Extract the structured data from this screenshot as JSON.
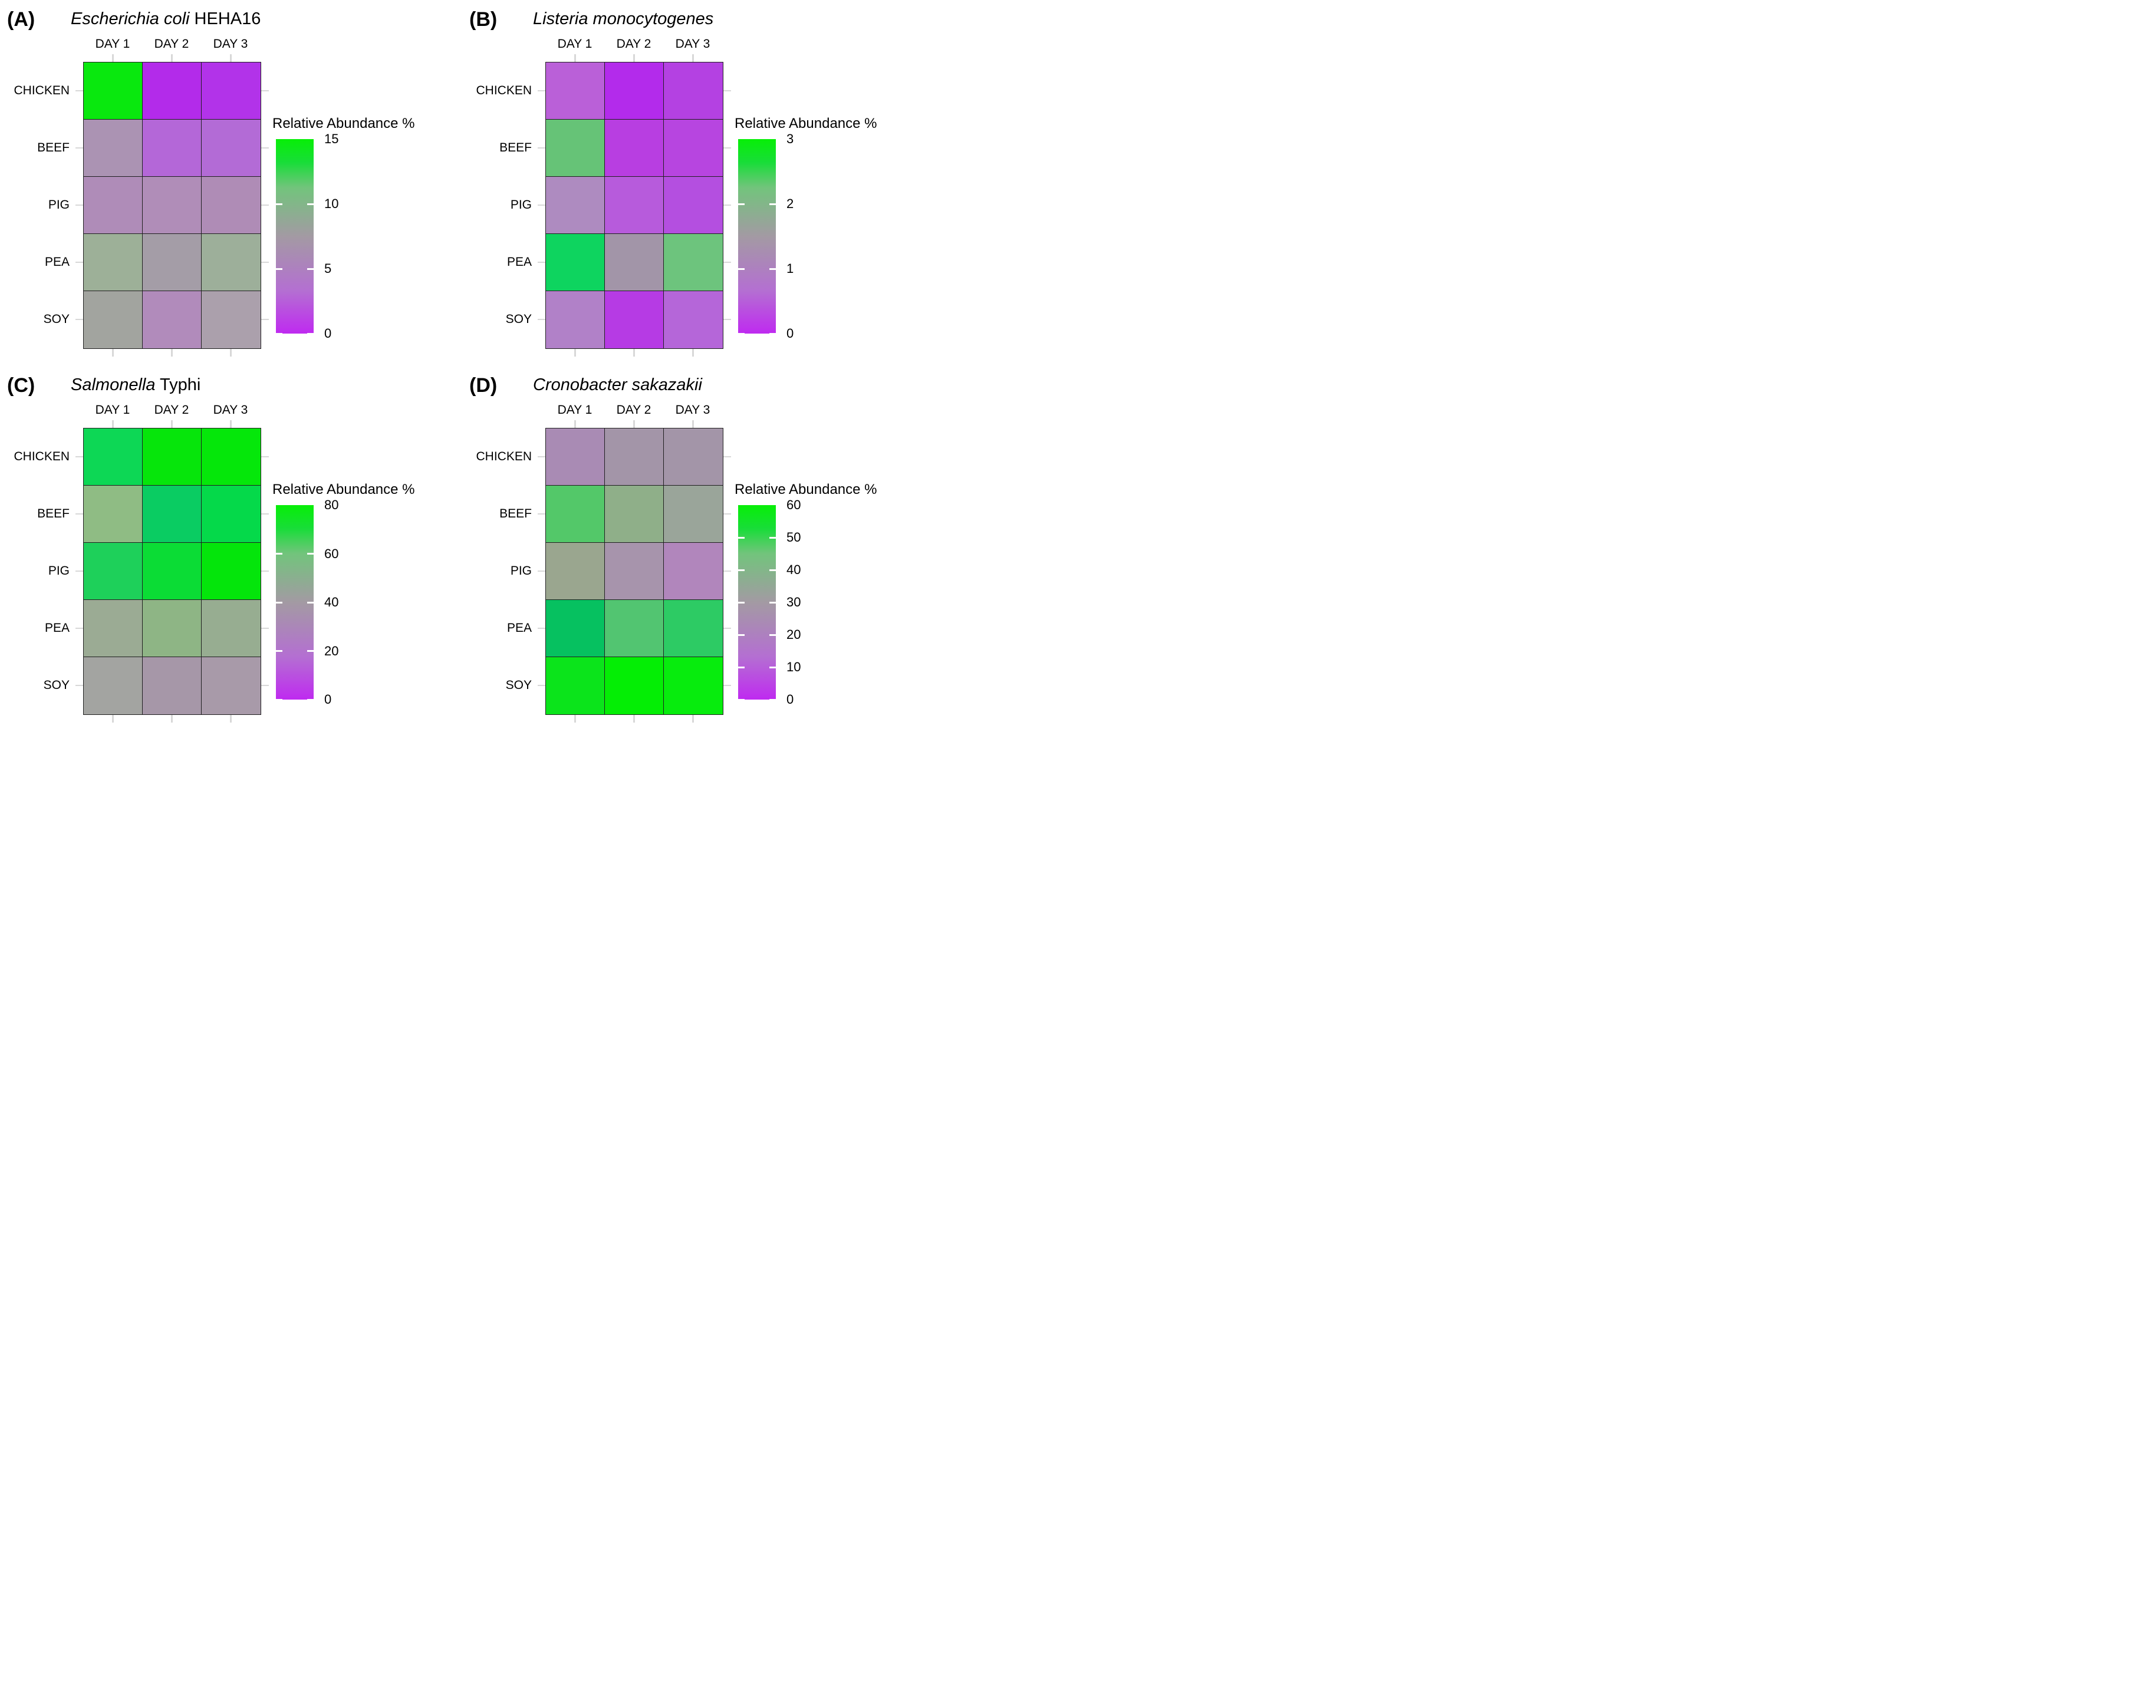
{
  "figure": {
    "legend_title": "Relative Abundance %",
    "columns": [
      "DAY 1",
      "DAY 2",
      "DAY 3"
    ],
    "rows": [
      "CHICKEN",
      "BEEF",
      "PIG",
      "PEA",
      "SOY"
    ],
    "colors": {
      "scale_low": "#bf2af0",
      "scale_mid": "#a29aa2",
      "scale_high": "#07ef07",
      "axis_tick_gray": "#d8d8d8",
      "cell_border": "#1f1f1f"
    }
  },
  "panels": [
    {
      "letter": "(A)",
      "title_italic": "Escherichia coli",
      "title_regular": " HEHA16",
      "legend_ticks": [
        "15",
        "10",
        "5",
        "0"
      ],
      "scale_min": 0,
      "scale_max": 15,
      "cell_colors": [
        [
          "#09e80e",
          "#b32bea",
          "#b233e9"
        ],
        [
          "#ab93b3",
          "#b467d8",
          "#b36bd6"
        ],
        [
          "#af8cb8",
          "#b08db8",
          "#af8cb6"
        ],
        [
          "#9db098",
          "#a49da7",
          "#9daf9a"
        ],
        [
          "#a2a49f",
          "#b18bbb",
          "#aba0ac"
        ]
      ]
    },
    {
      "letter": "(B)",
      "title_italic": "Listeria monocytogenes",
      "title_regular": "",
      "legend_ticks": [
        "3",
        "2",
        "1",
        "0"
      ],
      "scale_min": 0,
      "scale_max": 3,
      "cell_colors": [
        [
          "#ba60d8",
          "#b32beb",
          "#b441e2"
        ],
        [
          "#66c377",
          "#b83ee1",
          "#b745e0"
        ],
        [
          "#ae8bc0",
          "#b75bdc",
          "#b44fe0"
        ],
        [
          "#0ed45f",
          "#a295a8",
          "#6dc47d"
        ],
        [
          "#b181c8",
          "#b63be4",
          "#b566d9"
        ]
      ]
    },
    {
      "letter": "(C)",
      "title_italic": "Salmonella",
      "title_regular": " Typhi",
      "legend_ticks": [
        "80",
        "60",
        "40",
        "20",
        "0"
      ],
      "scale_min": 0,
      "scale_max": 80,
      "cell_colors": [
        [
          "#0dd755",
          "#06e50b",
          "#05e70a"
        ],
        [
          "#8fbc84",
          "#0acc62",
          "#05d94a"
        ],
        [
          "#1ed05a",
          "#0bdc35",
          "#04e50b"
        ],
        [
          "#9bab94",
          "#8eb585",
          "#97ad91"
        ],
        [
          "#a3a4a1",
          "#a697a8",
          "#a89aa9"
        ]
      ]
    },
    {
      "letter": "(D)",
      "title_italic": "Cronobacter sakazakii",
      "title_regular": "",
      "legend_ticks": [
        "60",
        "50",
        "40",
        "30",
        "20",
        "10",
        "0"
      ],
      "scale_min": 0,
      "scale_max": 60,
      "cell_colors": [
        [
          "#a98bb4",
          "#a395a8",
          "#a395a8"
        ],
        [
          "#53c869",
          "#8faf89",
          "#9aa59a"
        ],
        [
          "#9aa68f",
          "#a794ac",
          "#b186bc"
        ],
        [
          "#06c160",
          "#52c571",
          "#2dcb64"
        ],
        [
          "#0be41b",
          "#04ee05",
          "#07ec0d"
        ]
      ]
    }
  ],
  "chart_data": [
    {
      "type": "heatmap",
      "panel": "A",
      "title": "Escherichia coli HEHA16",
      "x": [
        "DAY 1",
        "DAY 2",
        "DAY 3"
      ],
      "y": [
        "CHICKEN",
        "BEEF",
        "PIG",
        "PEA",
        "SOY"
      ],
      "values": [
        [
          15,
          0.4,
          0.5
        ],
        [
          6,
          2.5,
          2.6
        ],
        [
          4,
          4,
          4
        ],
        [
          9,
          7,
          9
        ],
        [
          8,
          4.5,
          6.5
        ]
      ],
      "legend_title": "Relative Abundance %",
      "legend_ticks": [
        15,
        10,
        5,
        0
      ],
      "scale": {
        "min": 0,
        "max": 15,
        "low": "purple",
        "mid": "gray",
        "high": "green"
      },
      "legend_position": "right"
    },
    {
      "type": "heatmap",
      "panel": "B",
      "title": "Listeria monocytogenes",
      "x": [
        "DAY 1",
        "DAY 2",
        "DAY 3"
      ],
      "y": [
        "CHICKEN",
        "BEEF",
        "PIG",
        "PEA",
        "SOY"
      ],
      "values": [
        [
          0.6,
          0.1,
          0.3
        ],
        [
          2.3,
          0.2,
          0.3
        ],
        [
          0.9,
          0.5,
          0.4
        ],
        [
          2.9,
          1.5,
          2.2
        ],
        [
          0.8,
          0.2,
          0.6
        ]
      ],
      "legend_title": "Relative Abundance %",
      "legend_ticks": [
        3,
        2,
        1,
        0
      ],
      "scale": {
        "min": 0,
        "max": 3,
        "low": "purple",
        "mid": "gray",
        "high": "green"
      },
      "legend_position": "right"
    },
    {
      "type": "heatmap",
      "panel": "C",
      "title": "Salmonella Typhi",
      "x": [
        "DAY 1",
        "DAY 2",
        "DAY 3"
      ],
      "y": [
        "CHICKEN",
        "BEEF",
        "PIG",
        "PEA",
        "SOY"
      ],
      "values": [
        [
          65,
          75,
          75
        ],
        [
          50,
          63,
          68
        ],
        [
          64,
          70,
          76
        ],
        [
          45,
          48,
          45
        ],
        [
          40,
          35,
          36
        ]
      ],
      "legend_title": "Relative Abundance %",
      "legend_ticks": [
        80,
        60,
        40,
        20,
        0
      ],
      "scale": {
        "min": 0,
        "max": 80,
        "low": "purple",
        "mid": "gray",
        "high": "green"
      },
      "legend_position": "right"
    },
    {
      "type": "heatmap",
      "panel": "D",
      "title": "Cronobacter sakazakii",
      "x": [
        "DAY 1",
        "DAY 2",
        "DAY 3"
      ],
      "y": [
        "CHICKEN",
        "BEEF",
        "PIG",
        "PEA",
        "SOY"
      ],
      "values": [
        [
          20,
          26,
          26
        ],
        [
          45,
          35,
          31
        ],
        [
          32,
          25,
          20
        ],
        [
          48,
          44,
          46
        ],
        [
          57,
          59,
          58
        ]
      ],
      "legend_title": "Relative Abundance %",
      "legend_ticks": [
        60,
        50,
        40,
        30,
        20,
        10,
        0
      ],
      "scale": {
        "min": 0,
        "max": 60,
        "low": "purple",
        "mid": "gray",
        "high": "green"
      },
      "legend_position": "right"
    }
  ]
}
